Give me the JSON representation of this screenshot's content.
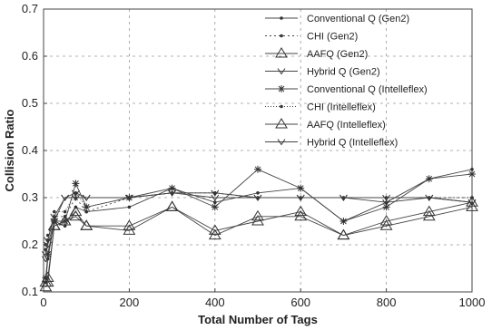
{
  "chart_data": {
    "type": "line",
    "title": "",
    "xlabel": "Total Number of Tags",
    "ylabel": "Collision Ratio",
    "xlim": [
      0,
      1000
    ],
    "ylim": [
      0.1,
      0.7
    ],
    "xticks": [
      0,
      200,
      400,
      600,
      800,
      1000
    ],
    "yticks": [
      0.1,
      0.2,
      0.3,
      0.4,
      0.5,
      0.6,
      0.7
    ],
    "xtick_labels": [
      "0",
      "200",
      "400",
      "600",
      "800",
      "1000"
    ],
    "ytick_labels": [
      "0.1",
      "0.2",
      "0.3",
      "0.4",
      "0.5",
      "0.6",
      "0.7"
    ],
    "grid": true,
    "legend_position": "top-right",
    "series": [
      {
        "name": "Conventional Q (Gen2)",
        "marker": "dot",
        "dash": "",
        "x": [
          5,
          10,
          25,
          50,
          75,
          100,
          200,
          300,
          400,
          500,
          600,
          700,
          800,
          900,
          1000
        ],
        "y": [
          0.12,
          0.17,
          0.25,
          0.24,
          0.28,
          0.27,
          0.28,
          0.32,
          0.29,
          0.31,
          0.32,
          0.25,
          0.29,
          0.34,
          0.36
        ]
      },
      {
        "name": "CHI (Gen2)",
        "marker": "dot",
        "dash": "2,3",
        "x": [
          5,
          10,
          25,
          50,
          75,
          100,
          200,
          300,
          400,
          500,
          600,
          700,
          800,
          900,
          1000
        ],
        "y": [
          0.2,
          0.22,
          0.26,
          0.26,
          0.3,
          0.27,
          0.3,
          0.31,
          0.31,
          0.3,
          0.3,
          0.3,
          0.3,
          0.3,
          0.3
        ]
      },
      {
        "name": "AAFQ (Gen2)",
        "marker": "triangle",
        "dash": "",
        "x": [
          5,
          10,
          25,
          50,
          75,
          100,
          200,
          300,
          400,
          500,
          600,
          700,
          800,
          900,
          1000
        ],
        "y": [
          0.12,
          0.13,
          0.24,
          0.25,
          0.27,
          0.24,
          0.23,
          0.28,
          0.23,
          0.25,
          0.27,
          0.22,
          0.24,
          0.26,
          0.28
        ]
      },
      {
        "name": "Hybrid Q (Gen2)",
        "marker": "vee",
        "dash": "",
        "x": [
          5,
          10,
          25,
          50,
          75,
          100,
          200,
          300,
          400,
          500,
          600,
          700,
          800,
          900,
          1000
        ],
        "y": [
          0.18,
          0.2,
          0.25,
          0.3,
          0.31,
          0.3,
          0.3,
          0.31,
          0.31,
          0.3,
          0.3,
          0.3,
          0.29,
          0.3,
          0.29
        ]
      },
      {
        "name": "Conventional Q (Intelleflex)",
        "marker": "star",
        "dash": "",
        "x": [
          5,
          10,
          25,
          50,
          75,
          100,
          200,
          300,
          400,
          500,
          600,
          700,
          800,
          900,
          1000
        ],
        "y": [
          0.13,
          0.18,
          0.25,
          0.25,
          0.33,
          0.28,
          0.3,
          0.32,
          0.28,
          0.36,
          0.32,
          0.25,
          0.28,
          0.34,
          0.35
        ]
      },
      {
        "name": "CHI (Intelleflex)",
        "marker": "dot",
        "dash": "1,2",
        "x": [
          5,
          10,
          25,
          50,
          75,
          100,
          200,
          300,
          400,
          500,
          600,
          700,
          800,
          900,
          1000
        ],
        "y": [
          0.19,
          0.21,
          0.27,
          0.27,
          0.31,
          0.28,
          0.3,
          0.31,
          0.31,
          0.3,
          0.3,
          0.3,
          0.3,
          0.3,
          0.3
        ]
      },
      {
        "name": "AAFQ (Intelleflex)",
        "marker": "triangle",
        "dash": "",
        "x": [
          5,
          10,
          25,
          50,
          75,
          100,
          200,
          300,
          400,
          500,
          600,
          700,
          800,
          900,
          1000
        ],
        "y": [
          0.11,
          0.12,
          0.24,
          0.25,
          0.26,
          0.24,
          0.24,
          0.28,
          0.22,
          0.26,
          0.26,
          0.22,
          0.25,
          0.27,
          0.29
        ]
      },
      {
        "name": "Hybrid Q (Intelleflex)",
        "marker": "vee",
        "dash": "",
        "x": [
          5,
          10,
          25,
          50,
          75,
          100,
          200,
          300,
          400,
          500,
          600,
          700,
          800,
          900,
          1000
        ],
        "y": [
          0.17,
          0.21,
          0.26,
          0.3,
          0.3,
          0.3,
          0.3,
          0.31,
          0.3,
          0.3,
          0.3,
          0.3,
          0.3,
          0.3,
          0.29
        ]
      }
    ]
  }
}
